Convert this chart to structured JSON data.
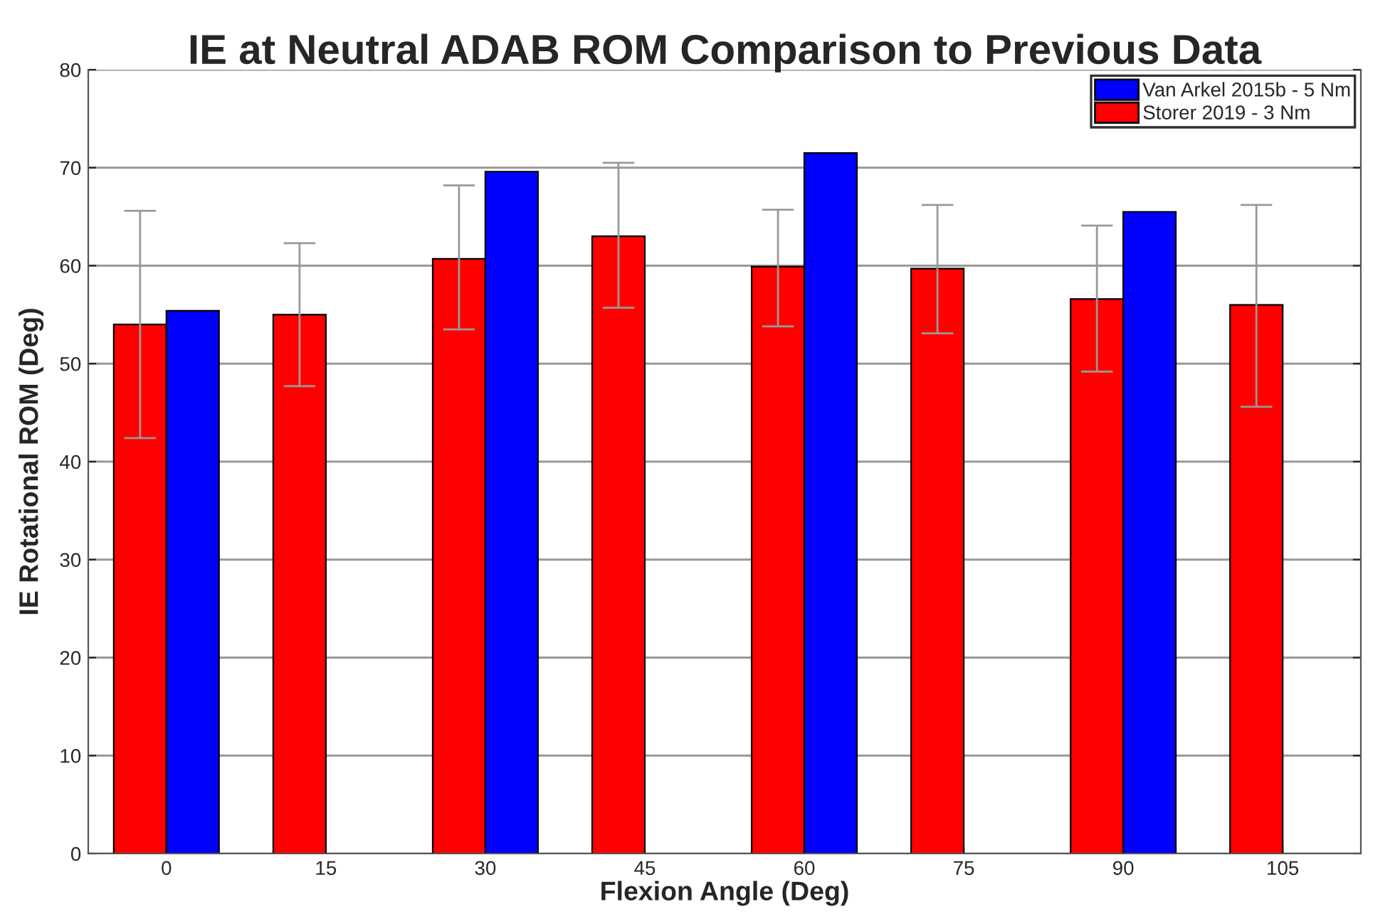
{
  "chart_data": {
    "type": "bar",
    "title": "IE at Neutral ADAB ROM Comparison to Previous Data",
    "xlabel": "Flexion Angle (Deg)",
    "ylabel": "IE Rotational ROM (Deg)",
    "categories": [
      "0",
      "15",
      "30",
      "45",
      "60",
      "75",
      "90",
      "105"
    ],
    "series": [
      {
        "name": "Storer 2019 - 3 Nm",
        "color": "#ff0000",
        "values": [
          54.0,
          55.0,
          60.7,
          63.0,
          59.9,
          59.7,
          56.6,
          56.0
        ],
        "errors": [
          [
            42.4,
            65.6
          ],
          [
            47.7,
            62.3
          ],
          [
            53.5,
            68.2
          ],
          [
            55.7,
            70.5
          ],
          [
            53.8,
            65.7
          ],
          [
            53.1,
            66.2
          ],
          [
            49.2,
            64.1
          ],
          [
            45.6,
            66.2
          ]
        ]
      },
      {
        "name": "Van Arkel 2015b - 5 Nm",
        "color": "#0000ff",
        "values": [
          55.4,
          null,
          69.6,
          null,
          71.5,
          null,
          65.5,
          null
        ]
      }
    ],
    "ylim": [
      0,
      80
    ],
    "yticks": [
      0,
      10,
      20,
      30,
      40,
      50,
      60,
      70,
      80
    ],
    "grid": "y",
    "legend": "top right"
  }
}
